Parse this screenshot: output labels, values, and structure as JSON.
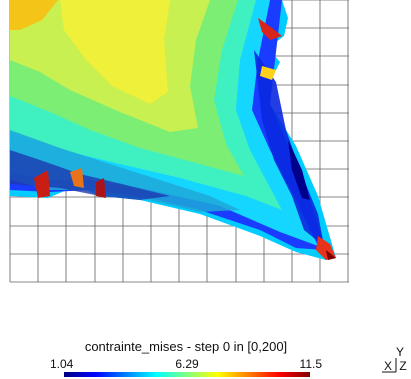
{
  "chart_data": {
    "type": "heatmap",
    "title": "contrainte_mises - step 0 in [0,200]",
    "field": "contrainte_mises",
    "color_scale": {
      "min": 1.04,
      "max": 11.5,
      "tick_labels": [
        "1.04",
        "6.29",
        "11.5"
      ],
      "colors": [
        "#00007f",
        "#0000ff",
        "#007fff",
        "#00ffff",
        "#7fff7f",
        "#ffff00",
        "#ff7f00",
        "#ff0000",
        "#7f0000"
      ]
    },
    "grid": true,
    "axes_triad": {
      "x": "X",
      "y": "Y",
      "z": "Z"
    }
  }
}
